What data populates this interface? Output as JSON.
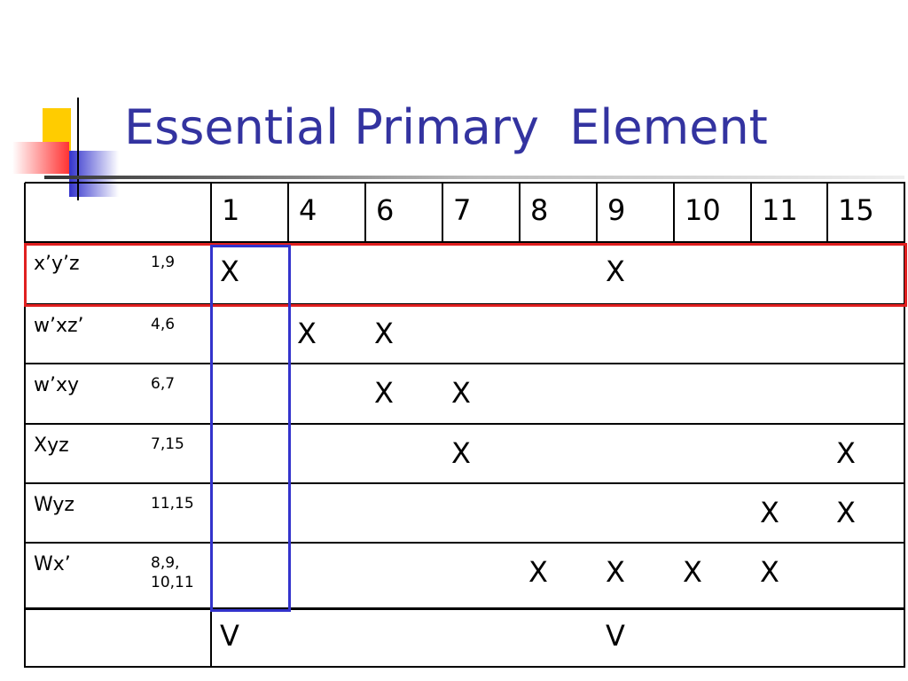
{
  "title": "Essential Primary  Element",
  "table": {
    "columns": [
      "1",
      "4",
      "6",
      "7",
      "8",
      "9",
      "10",
      "11",
      "15"
    ],
    "rows": [
      {
        "term": "x’y’z",
        "minterms": "1,9",
        "marks": [
          "X",
          null,
          null,
          null,
          null,
          "X",
          null,
          null,
          null
        ]
      },
      {
        "term": "w’xz’",
        "minterms": "4,6",
        "marks": [
          null,
          "X",
          "X",
          null,
          null,
          null,
          null,
          null,
          null
        ]
      },
      {
        "term": "w’xy",
        "minterms": "6,7",
        "marks": [
          null,
          null,
          "X",
          "X",
          null,
          null,
          null,
          null,
          null
        ]
      },
      {
        "term": "Xyz",
        "minterms": "7,15",
        "marks": [
          null,
          null,
          null,
          "X",
          null,
          null,
          null,
          null,
          "X"
        ]
      },
      {
        "term": "Wyz",
        "minterms": "11,15",
        "marks": [
          null,
          null,
          null,
          null,
          null,
          null,
          null,
          "X",
          "X"
        ]
      },
      {
        "term": "Wx’",
        "minterms": "8,9, 10,11",
        "marks": [
          null,
          null,
          null,
          null,
          "X",
          "X",
          "X",
          "X",
          null
        ]
      }
    ],
    "footer": {
      "marks": [
        "V",
        null,
        null,
        null,
        null,
        "V",
        null,
        null,
        null
      ]
    }
  }
}
